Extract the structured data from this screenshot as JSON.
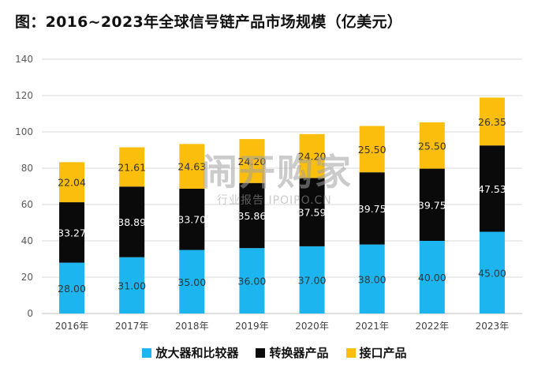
{
  "title": "图：2016~2023年全球信号链产品市场规模（亿美元）",
  "watermark": {
    "brand": "闹开购家",
    "sub": "行业报告 IPOIPO.CN"
  },
  "colors": {
    "amplifier": "#1CB5F0",
    "converter": "#0A0A0A",
    "interface": "#FBBE0C",
    "grid": "#D9D9D9",
    "axis_text": "#595959"
  },
  "chart_data": {
    "type": "bar",
    "stacked": true,
    "categories": [
      "2016年",
      "2017年",
      "2018年",
      "2019年",
      "2020年",
      "2021年",
      "2022年",
      "2023年"
    ],
    "series": [
      {
        "name": "放大器和比较器",
        "values": [
          28.0,
          31.0,
          35.0,
          36.0,
          37.0,
          38.0,
          40.0,
          45.0
        ],
        "labels": [
          "28.00",
          "31.00",
          "35.00",
          "36.00",
          "37.00",
          "38.00",
          "40.00",
          "45.00"
        ],
        "color": "#1CB5F0",
        "label_color": "#333333"
      },
      {
        "name": "转换器产品",
        "values": [
          33.27,
          38.89,
          33.7,
          35.86,
          37.59,
          39.75,
          39.75,
          47.53
        ],
        "labels": [
          "33.27",
          "38.89",
          "33.70",
          "35.86",
          "37.59",
          "39.75",
          "39.75",
          "47.53"
        ],
        "color": "#0A0A0A",
        "label_color": "#FFFFFF"
      },
      {
        "name": "接口产品",
        "values": [
          22.04,
          21.61,
          24.63,
          24.2,
          24.2,
          25.5,
          25.5,
          26.35
        ],
        "labels": [
          "22.04",
          "21.61",
          "24.63",
          "24.20",
          "24.20",
          "25.50",
          "25.50",
          "26.35"
        ],
        "color": "#FBBE0C",
        "label_color": "#333333"
      }
    ],
    "ylim": [
      0,
      140
    ],
    "yticks": [
      "0",
      "20",
      "40",
      "60",
      "80",
      "100",
      "120",
      "140"
    ],
    "grid": true,
    "legend_position": "bottom"
  }
}
